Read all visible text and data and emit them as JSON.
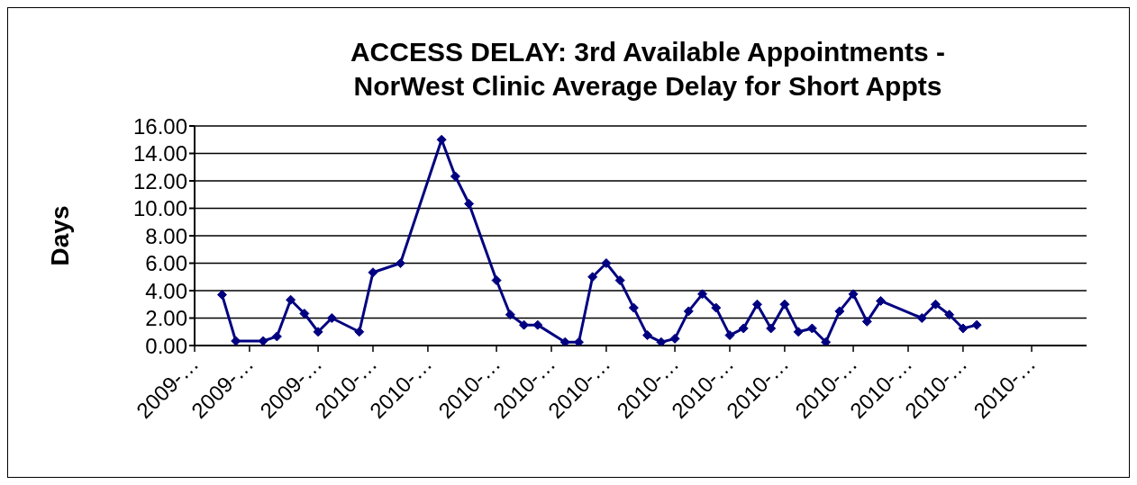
{
  "chart_data": {
    "type": "line",
    "title": "ACCESS DELAY: 3rd Available Appointments -\nNorWest Clinic Average Delay for Short Appts",
    "ylabel": "Days",
    "categories": [
      "2009-…",
      null,
      null,
      null,
      "2009-…",
      null,
      null,
      null,
      null,
      "2009-…",
      null,
      null,
      null,
      "2010-…",
      null,
      null,
      null,
      "2010-…",
      null,
      null,
      null,
      null,
      "2010-…",
      null,
      null,
      null,
      "2010-…",
      null,
      null,
      null,
      "2010-…",
      null,
      null,
      null,
      null,
      "2010-…",
      null,
      null,
      null,
      "2010-…",
      null,
      null,
      null,
      "2010-…",
      null,
      null,
      null,
      null,
      "2010-…",
      null,
      null,
      null,
      "2010-…",
      null,
      null,
      null,
      "2010-…",
      null,
      null,
      null,
      null,
      "2010-…",
      null,
      null,
      null,
      null
    ],
    "values": [
      null,
      null,
      3.7,
      0.33,
      null,
      0.33,
      0.66,
      3.33,
      2.33,
      1.0,
      2.0,
      null,
      1.0,
      5.33,
      null,
      6.0,
      null,
      null,
      15.0,
      12.33,
      10.33,
      null,
      4.75,
      2.25,
      1.5,
      1.5,
      null,
      0.25,
      0.25,
      5.0,
      6.0,
      4.75,
      2.75,
      0.75,
      0.25,
      0.5,
      2.5,
      3.75,
      2.75,
      0.75,
      1.25,
      3.0,
      1.25,
      3.0,
      1.0,
      1.25,
      0.25,
      2.5,
      3.75,
      1.75,
      3.25,
      null,
      null,
      2.0,
      3.0,
      2.25,
      1.25,
      1.5,
      null,
      null,
      null,
      null,
      null,
      null,
      null,
      null
    ],
    "color": "#000080",
    "marker": "diamond",
    "grid": "y",
    "ylim": [
      0,
      16
    ],
    "yticks": [
      {
        "value": 0,
        "label": "0.00"
      },
      {
        "value": 2,
        "label": "2.00"
      },
      {
        "value": 4,
        "label": "4.00"
      },
      {
        "value": 6,
        "label": "6.00"
      },
      {
        "value": 8,
        "label": "8.00"
      },
      {
        "value": 10,
        "label": "10.00"
      },
      {
        "value": 12,
        "label": "12.00"
      },
      {
        "value": 14,
        "label": "14.00"
      },
      {
        "value": 16,
        "label": "16.00"
      }
    ]
  }
}
